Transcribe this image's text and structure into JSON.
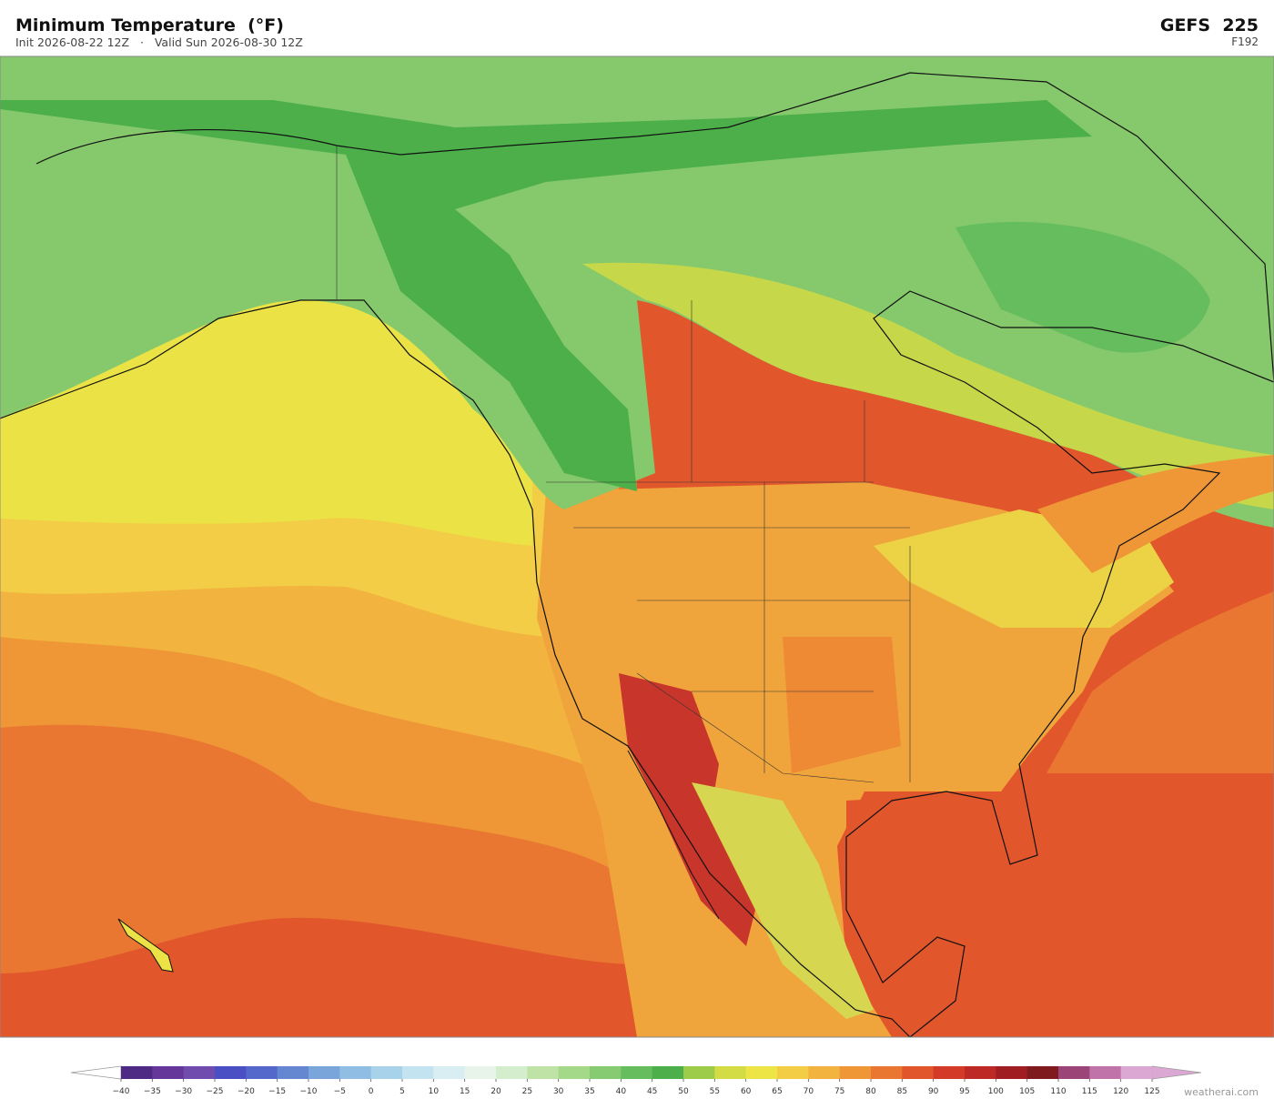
{
  "header": {
    "title": "Minimum Temperature  (°F)",
    "subtitle": "Init 2026-08-22 12Z   ·   Valid Sun 2026-08-30 12Z",
    "model": "GEFS  225",
    "forecast_hour": "F192"
  },
  "colorbar": {
    "ticks": [
      {
        "value": -40,
        "label": "−40"
      },
      {
        "value": -35,
        "label": "−35"
      },
      {
        "value": -30,
        "label": "−30"
      },
      {
        "value": -25,
        "label": "−25"
      },
      {
        "value": -20,
        "label": "−20"
      },
      {
        "value": -15,
        "label": "−15"
      },
      {
        "value": -10,
        "label": "−10"
      },
      {
        "value": -5,
        "label": "−5"
      },
      0,
      5,
      10,
      15,
      20,
      25,
      30,
      35,
      40,
      45,
      50,
      55,
      60,
      65,
      70,
      75,
      80,
      85,
      90,
      95,
      100,
      105,
      110,
      115,
      120,
      125
    ],
    "colors": [
      "#4e2a84",
      "#66379a",
      "#6f4cae",
      "#4a4fc4",
      "#5467cb",
      "#6587d2",
      "#7aa5da",
      "#90bde3",
      "#a8d2ea",
      "#c3e3f0",
      "#d9eef3",
      "#e8f4ea",
      "#d4edcc",
      "#bfe3a6",
      "#a4d98a",
      "#86cb72",
      "#66bd5d",
      "#4caf4a",
      "#9dcb4a",
      "#d3dc45",
      "#ede546",
      "#f3cd45",
      "#f2b33f",
      "#ef9636",
      "#e97631",
      "#e2562c",
      "#d33b28",
      "#bd2924",
      "#a01e22",
      "#7f1a1e",
      "#9a4478",
      "#c073a8",
      "#dba7d3"
    ],
    "under_color": "#ffffff",
    "over_color": "#dba7d3"
  },
  "watermark": "weatherai.com"
}
